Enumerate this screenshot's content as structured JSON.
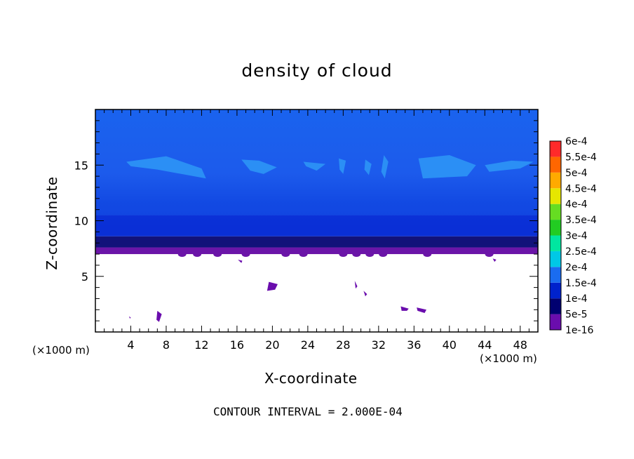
{
  "chart_data": {
    "type": "heatmap",
    "title": "density of cloud",
    "xlabel": "X-coordinate",
    "ylabel": "Z-coordinate",
    "x_unit_label": "(×1000 m)",
    "footer": "CONTOUR INTERVAL = 2.000E-04",
    "xlim": [
      0,
      50
    ],
    "ylim": [
      0,
      20
    ],
    "x_ticks": [
      4,
      8,
      12,
      16,
      20,
      24,
      28,
      32,
      36,
      40,
      44,
      48
    ],
    "x_tick_labels": [
      "4",
      "8",
      "12",
      "16",
      "20",
      "24",
      "28",
      "32",
      "36",
      "40",
      "44",
      "48"
    ],
    "y_ticks": [
      5,
      10,
      15
    ],
    "y_tick_labels": [
      "5",
      "10",
      "15"
    ],
    "colorbar": {
      "labels": [
        "1e-16",
        "5e-5",
        "1e-4",
        "1.5e-4",
        "2e-4",
        "2.5e-4",
        "3e-4",
        "3.5e-4",
        "4e-4",
        "4.5e-4",
        "5e-4",
        "5.5e-4",
        "6e-4"
      ],
      "colors": [
        "#6a0dad",
        "#000070",
        "#0022cc",
        "#1a6cf0",
        "#00c8e6",
        "#00e6a0",
        "#22cc22",
        "#66dd22",
        "#e6e600",
        "#ffaa00",
        "#ff6600",
        "#ff2a2a",
        "#ff8a8a"
      ]
    },
    "layers": [
      {
        "z_from": 7.0,
        "z_to": 7.6,
        "level": "1e-16",
        "color": "#6b15a8"
      },
      {
        "z_from": 7.6,
        "z_to": 8.6,
        "level": "5e-5",
        "color": "#12127a"
      },
      {
        "z_from": 8.6,
        "z_to": 10.5,
        "level": "1e-4",
        "color": "#0a2fd6"
      },
      {
        "z_from": 10.5,
        "z_to": 20.0,
        "level": "1.5e-4",
        "color": "#1a63ee"
      }
    ],
    "upper_patches": [
      {
        "x": [
          3.5,
          8,
          12,
          12.5,
          7,
          4
        ],
        "z": [
          15.3,
          15.8,
          14.7,
          13.8,
          14.6,
          14.9
        ],
        "level": "2e-4"
      },
      {
        "x": [
          16.5,
          18.5,
          20.5,
          19,
          17.5
        ],
        "z": [
          15.5,
          15.4,
          14.8,
          14.2,
          14.5
        ],
        "level": "2e-4"
      },
      {
        "x": [
          23.5,
          26,
          25,
          23.8
        ],
        "z": [
          15.3,
          15.1,
          14.5,
          14.9
        ],
        "level": "2e-4"
      },
      {
        "x": [
          27.5,
          28.3,
          28.0,
          27.6
        ],
        "z": [
          15.6,
          15.4,
          14.2,
          14.6
        ],
        "level": "2e-4"
      },
      {
        "x": [
          30.5,
          31.2,
          30.9,
          30.4
        ],
        "z": [
          15.5,
          15.1,
          14.1,
          14.6
        ],
        "level": "2e-4"
      },
      {
        "x": [
          32.6,
          33.1,
          32.7,
          32.3
        ],
        "z": [
          15.9,
          15.3,
          13.8,
          14.4
        ],
        "level": "2e-4"
      },
      {
        "x": [
          36.5,
          40,
          43,
          42,
          37
        ],
        "z": [
          15.6,
          15.9,
          15.0,
          14.0,
          13.8
        ],
        "level": "2e-4"
      },
      {
        "x": [
          44,
          47,
          49.5,
          48,
          44.5
        ],
        "z": [
          15.0,
          15.4,
          15.3,
          14.7,
          14.4
        ],
        "level": "2e-4"
      }
    ],
    "lower_patches": [
      {
        "x": [
          7.0,
          7.5,
          7.2,
          6.9
        ],
        "z": [
          1.9,
          1.6,
          0.9,
          1.1
        ],
        "level": "1e-16"
      },
      {
        "x": [
          3.8,
          4.0,
          3.9
        ],
        "z": [
          1.4,
          1.3,
          1.2
        ],
        "level": "1e-16"
      },
      {
        "x": [
          19.6,
          20.6,
          20.3,
          19.4
        ],
        "z": [
          4.5,
          4.3,
          3.8,
          3.7
        ],
        "level": "1e-16"
      },
      {
        "x": [
          29.3,
          29.6,
          29.4
        ],
        "z": [
          4.6,
          4.1,
          3.9
        ],
        "level": "1e-16"
      },
      {
        "x": [
          30.3,
          30.7,
          30.5
        ],
        "z": [
          3.7,
          3.4,
          3.2
        ],
        "level": "1e-16"
      },
      {
        "x": [
          34.5,
          35.4,
          35.2,
          34.6
        ],
        "z": [
          2.3,
          2.1,
          1.9,
          1.9
        ],
        "level": "1e-16"
      },
      {
        "x": [
          36.3,
          37.4,
          37.2,
          36.4
        ],
        "z": [
          2.2,
          2.0,
          1.7,
          1.9
        ],
        "level": "1e-16"
      },
      {
        "x": [
          16.1,
          16.6,
          16.5
        ],
        "z": [
          6.5,
          6.4,
          6.2
        ],
        "level": "1e-16"
      },
      {
        "x": [
          44.9,
          45.3,
          45.1
        ],
        "z": [
          6.6,
          6.5,
          6.3
        ],
        "level": "1e-16"
      }
    ],
    "bottom_edge_bumps_x": [
      9.8,
      11.5,
      13.8,
      17.0,
      21.5,
      23.5,
      28.0,
      29.5,
      31.0,
      32.5,
      37.5,
      44.5
    ]
  }
}
